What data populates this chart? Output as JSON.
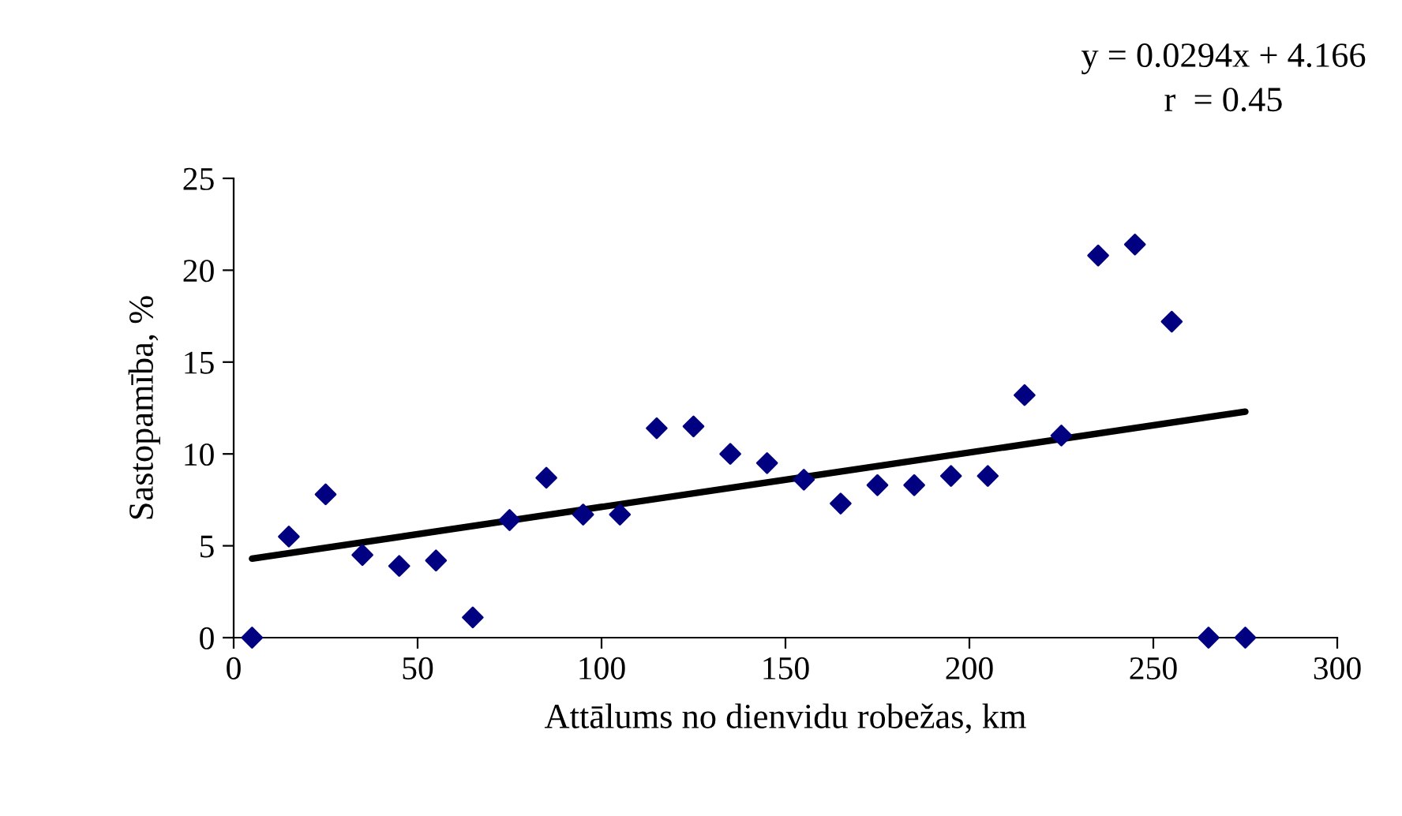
{
  "chart_data": {
    "type": "scatter",
    "xlabel": "Attālums no dienvidu robežas, km",
    "ylabel": "Sastopamība, %",
    "annotations": [
      "y = 0.0294x + 4.166",
      "r  = 0.45"
    ],
    "xlim": [
      0,
      300
    ],
    "xticks": [
      0,
      50,
      100,
      150,
      200,
      250,
      300
    ],
    "ylim": [
      0,
      25
    ],
    "yticks": [
      0,
      5,
      10,
      15,
      20,
      25
    ],
    "grid": false,
    "series": [
      {
        "color": "#000080",
        "marker": "diamond",
        "x": [
          5,
          15,
          25,
          35,
          45,
          55,
          65,
          75,
          85,
          95,
          105,
          115,
          125,
          135,
          145,
          155,
          165,
          175,
          185,
          195,
          205,
          215,
          225,
          235,
          245,
          255,
          265,
          275
        ],
        "values": [
          0,
          5.5,
          7.8,
          4.5,
          3.9,
          4.2,
          1.1,
          6.4,
          8.7,
          6.7,
          6.7,
          11.4,
          11.5,
          10.0,
          9.5,
          8.6,
          7.3,
          8.3,
          8.3,
          8.8,
          8.8,
          13.2,
          11.0,
          20.8,
          21.4,
          17.2,
          0,
          0
        ]
      },
      {
        "type": "line",
        "color": "#000000",
        "marker": "none",
        "x": [
          5,
          275
        ],
        "values": [
          4.3,
          12.3
        ]
      }
    ]
  }
}
